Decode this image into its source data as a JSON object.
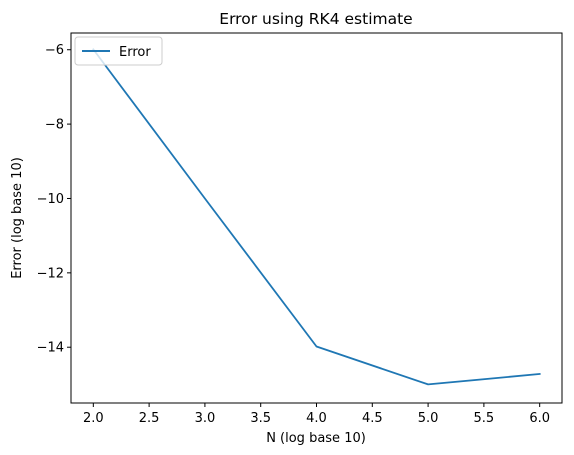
{
  "chart_data": {
    "type": "line",
    "title": "Error using RK4 estimate",
    "xlabel": "N (log base 10)",
    "ylabel": "Error (log base 10)",
    "xlim": [
      1.8,
      6.2
    ],
    "ylim": [
      -15.5,
      -5.55
    ],
    "xticks": [
      2.0,
      2.5,
      3.0,
      3.5,
      4.0,
      4.5,
      5.0,
      5.5,
      6.0
    ],
    "xtick_labels": [
      "2.0",
      "2.5",
      "3.0",
      "3.5",
      "4.0",
      "4.5",
      "5.0",
      "5.5",
      "6.0"
    ],
    "yticks": [
      -6,
      -8,
      -10,
      -12,
      -14
    ],
    "ytick_labels": [
      "−6",
      "−8",
      "−10",
      "−12",
      "−14"
    ],
    "grid": false,
    "legend_position": "top-left",
    "series": [
      {
        "name": "Error",
        "color": "#1f77b4",
        "x": [
          2,
          3,
          4,
          5,
          6
        ],
        "y": [
          -5.99,
          -10.0,
          -13.98,
          -15.0,
          -14.72
        ]
      }
    ]
  }
}
